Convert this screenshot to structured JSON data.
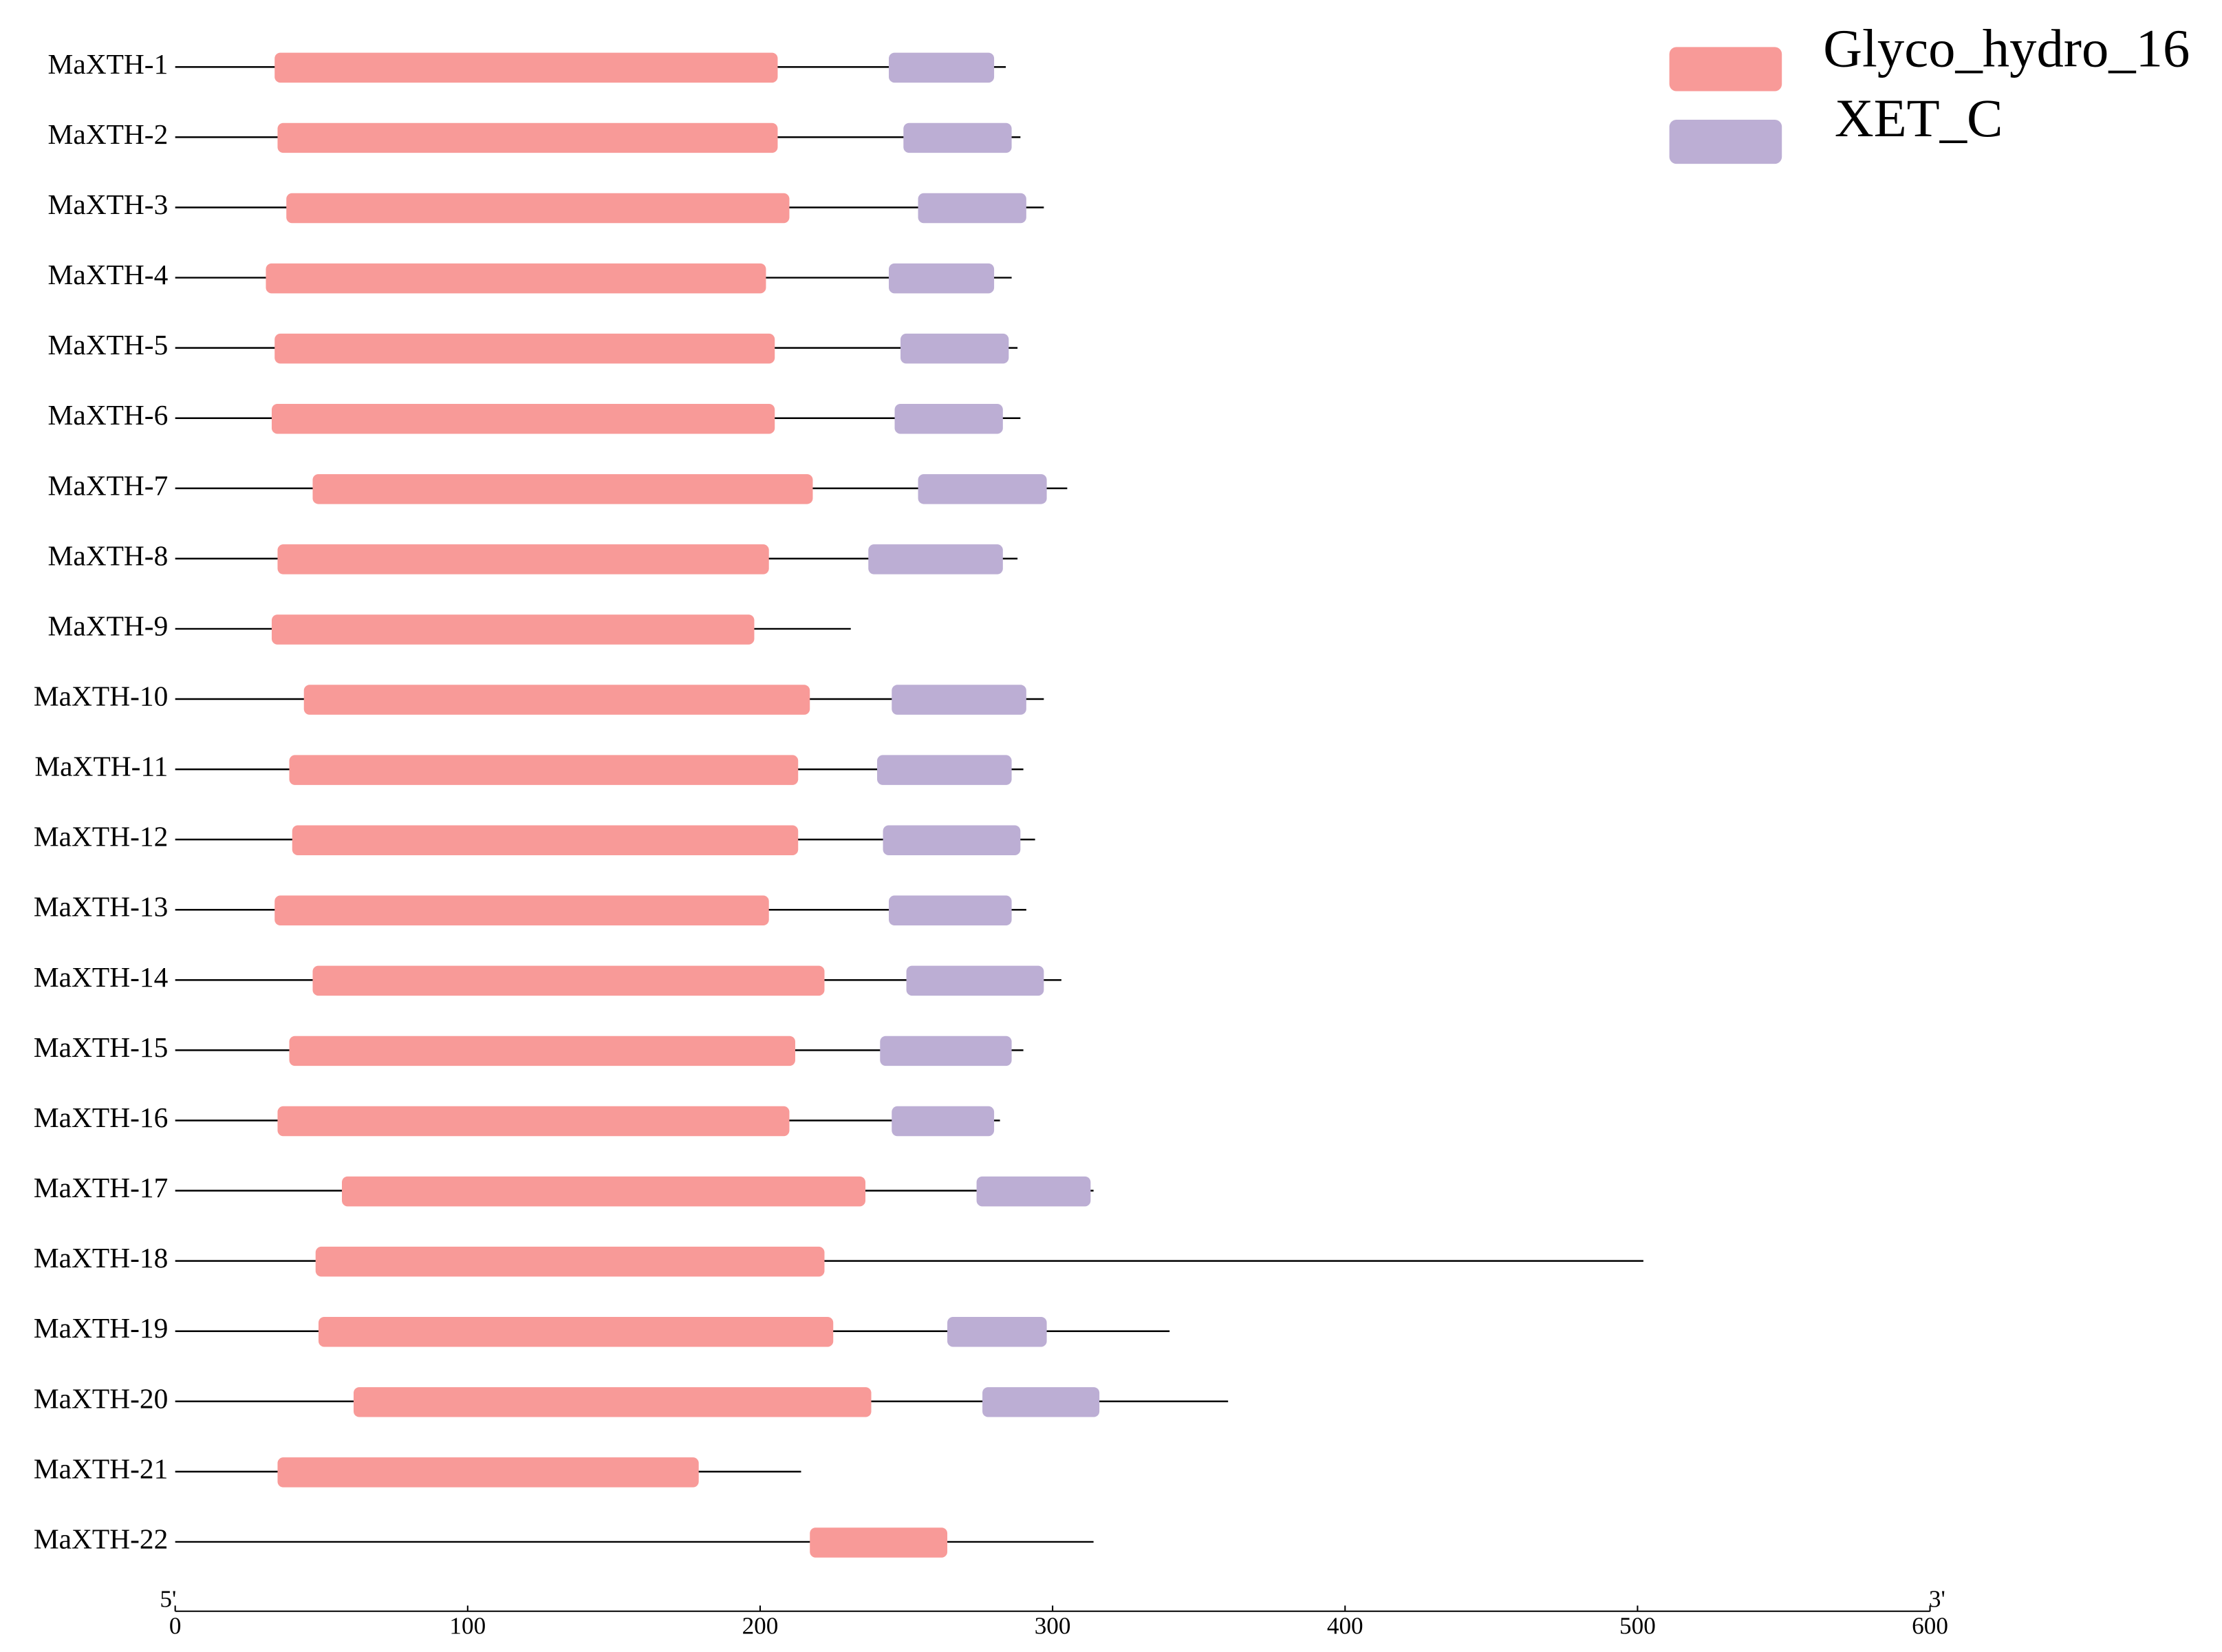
{
  "chart_data": {
    "type": "domain",
    "categories": [
      "MaXTH-1",
      "MaXTH-2",
      "MaXTH-3",
      "MaXTH-4",
      "MaXTH-5",
      "MaXTH-6",
      "MaXTH-7",
      "MaXTH-8",
      "MaXTH-9",
      "MaXTH-10",
      "MaXTH-11",
      "MaXTH-12",
      "MaXTH-13",
      "MaXTH-14",
      "MaXTH-15",
      "MaXTH-16",
      "MaXTH-17",
      "MaXTH-18",
      "MaXTH-19",
      "MaXTH-20",
      "MaXTH-21",
      "MaXTH-22"
    ],
    "lengths": [
      284,
      289,
      297,
      286,
      288,
      289,
      305,
      288,
      231,
      297,
      290,
      294,
      291,
      303,
      290,
      282,
      314,
      502,
      340,
      360,
      214,
      314
    ],
    "series": [
      {
        "name": "Glyco_hydro_16",
        "color": "#f89a98",
        "starts": [
          34,
          35,
          38,
          31,
          34,
          33,
          47,
          35,
          33,
          44,
          39,
          40,
          34,
          47,
          39,
          35,
          57,
          48,
          49,
          61,
          35,
          217
        ],
        "ends": [
          206,
          206,
          210,
          202,
          205,
          205,
          218,
          203,
          198,
          217,
          213,
          213,
          203,
          222,
          212,
          210,
          236,
          222,
          225,
          238,
          179,
          264
        ]
      },
      {
        "name": "XET_C",
        "color": "#bcaed4",
        "starts": [
          244,
          249,
          254,
          244,
          248,
          246,
          254,
          237,
          null,
          245,
          240,
          242,
          244,
          250,
          241,
          245,
          274,
          null,
          264,
          276,
          null,
          null
        ],
        "ends": [
          280,
          286,
          291,
          280,
          285,
          283,
          298,
          283,
          null,
          291,
          286,
          289,
          286,
          297,
          286,
          280,
          313,
          null,
          298,
          316,
          null,
          null
        ]
      }
    ],
    "xlim": [
      0,
      600
    ],
    "xticks": [
      0,
      100,
      200,
      300,
      400,
      500,
      600
    ],
    "end_labels": [
      "5'",
      "3'"
    ]
  }
}
